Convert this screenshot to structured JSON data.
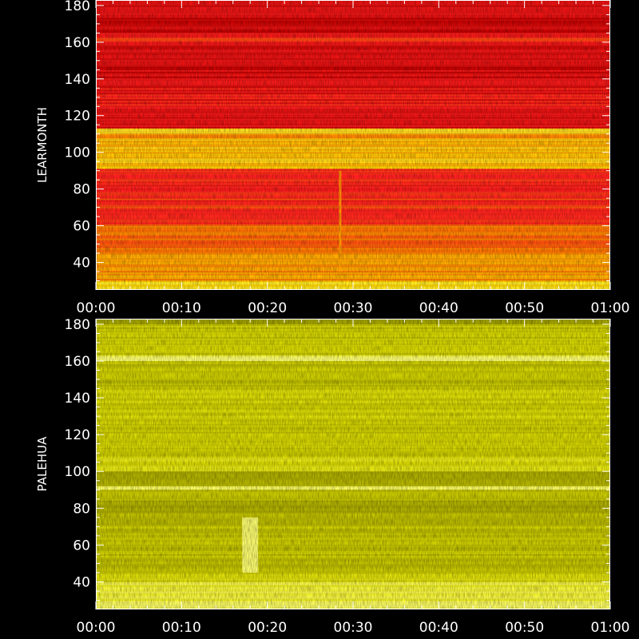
{
  "chart_data": [
    {
      "type": "heatmap",
      "ylabel": "LEARMONTH",
      "x_ticks": [
        "00:00",
        "00:10",
        "00:20",
        "00:30",
        "00:40",
        "00:50",
        "01:00"
      ],
      "y_ticks": [
        40,
        60,
        80,
        100,
        120,
        140,
        160,
        180
      ],
      "xlim_minutes": [
        0,
        60
      ],
      "ylim": [
        25,
        180
      ],
      "palette": [
        "#c00000",
        "#ff2020",
        "#ff8000",
        "#ffd000",
        "#ffff40"
      ],
      "bands": [
        {
          "y": [
            25,
            30
          ],
          "level": 0.85
        },
        {
          "y": [
            30,
            45
          ],
          "level": 0.6
        },
        {
          "y": [
            45,
            60
          ],
          "level": 0.45
        },
        {
          "y": [
            60,
            80
          ],
          "level": 0.3
        },
        {
          "y": [
            80,
            91
          ],
          "level": 0.25
        },
        {
          "y": [
            91,
            94
          ],
          "level": 0.7
        },
        {
          "y": [
            94,
            108
          ],
          "level": 0.75
        },
        {
          "y": [
            108,
            110
          ],
          "level": 0.5
        },
        {
          "y": [
            110,
            113
          ],
          "level": 0.95
        },
        {
          "y": [
            113,
            120
          ],
          "level": 0.15
        },
        {
          "y": [
            120,
            135
          ],
          "level": 0.2
        },
        {
          "y": [
            135,
            150
          ],
          "level": 0.1
        },
        {
          "y": [
            150,
            160
          ],
          "level": 0.12
        },
        {
          "y": [
            160,
            165
          ],
          "level": 0.25
        },
        {
          "y": [
            165,
            175
          ],
          "level": 0.05
        },
        {
          "y": [
            175,
            180
          ],
          "level": 0.15
        }
      ],
      "events": [
        {
          "minute": 28.5,
          "y": [
            35,
            90
          ],
          "level": 0.6
        }
      ]
    },
    {
      "type": "heatmap",
      "ylabel": "PALEHUA",
      "x_ticks": [
        "00:00",
        "00:10",
        "00:20",
        "00:30",
        "00:40",
        "00:50",
        "01:00"
      ],
      "y_ticks": [
        40,
        60,
        80,
        100,
        120,
        140,
        160,
        180
      ],
      "xlim_minutes": [
        0,
        60
      ],
      "ylim": [
        25,
        180
      ],
      "palette": [
        "#8c8c00",
        "#b0b000",
        "#d6d600",
        "#f0f020",
        "#ffff80"
      ],
      "bands": [
        {
          "y": [
            25,
            40
          ],
          "level": 0.85
        },
        {
          "y": [
            40,
            45
          ],
          "level": 0.55
        },
        {
          "y": [
            45,
            75
          ],
          "level": 0.4
        },
        {
          "y": [
            75,
            85
          ],
          "level": 0.3
        },
        {
          "y": [
            85,
            90
          ],
          "level": 0.35
        },
        {
          "y": [
            90,
            92
          ],
          "level": 0.95
        },
        {
          "y": [
            92,
            100
          ],
          "level": 0.2
        },
        {
          "y": [
            100,
            108
          ],
          "level": 0.6
        },
        {
          "y": [
            108,
            125
          ],
          "level": 0.45
        },
        {
          "y": [
            125,
            145
          ],
          "level": 0.5
        },
        {
          "y": [
            145,
            160
          ],
          "level": 0.4
        },
        {
          "y": [
            160,
            163
          ],
          "level": 0.95
        },
        {
          "y": [
            163,
            180
          ],
          "level": 0.45
        }
      ],
      "events": [
        {
          "minute": 18,
          "y": [
            45,
            75
          ],
          "level": 1.0
        }
      ]
    }
  ]
}
